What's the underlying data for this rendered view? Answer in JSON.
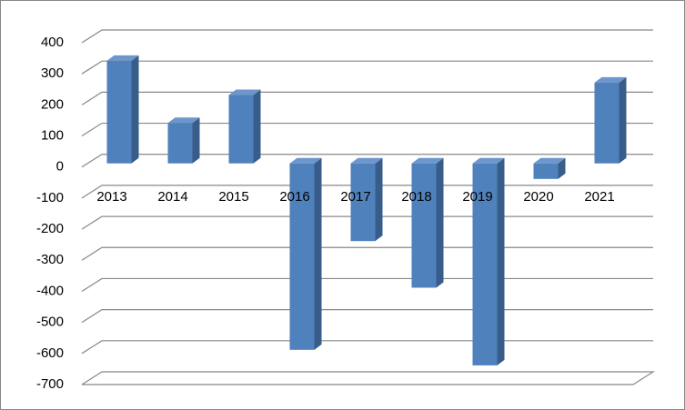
{
  "chart_data": {
    "type": "bar",
    "categories": [
      "2013",
      "2014",
      "2015",
      "2016",
      "2017",
      "2018",
      "2019",
      "2020",
      "2021"
    ],
    "values": [
      330,
      130,
      220,
      -600,
      -250,
      -400,
      -650,
      -50,
      260
    ],
    "color": "#4f81bd",
    "ylim": [
      -700,
      400
    ],
    "yticks": [
      -700,
      -600,
      -500,
      -400,
      -300,
      -200,
      -100,
      0,
      100,
      200,
      300,
      400
    ],
    "grid": true
  }
}
